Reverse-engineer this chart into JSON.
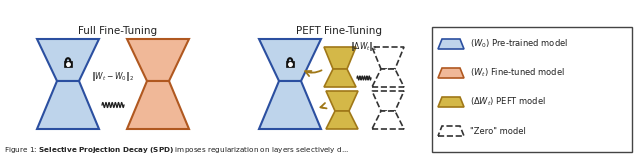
{
  "fig_width": 6.4,
  "fig_height": 1.59,
  "dpi": 100,
  "bg_color": "#ffffff",
  "title_full": "Full Fine-Tuning",
  "title_peft": "PEFT Fine-Tuning",
  "blue_fill": "#bed4eb",
  "blue_edge": "#2b4fa0",
  "orange_fill": "#f0b898",
  "orange_edge": "#b05820",
  "gold_fill": "#d4b848",
  "gold_edge": "#a07818",
  "dashed_fill": "#ffffff",
  "dashed_edge": "#333333",
  "legend_labels": [
    "$(W_0)$ Pre-trained model",
    "$(W_t)$ Fine-tuned model",
    "$(\\Delta W_t)$ PEFT model",
    "\"Zero\" model"
  ]
}
